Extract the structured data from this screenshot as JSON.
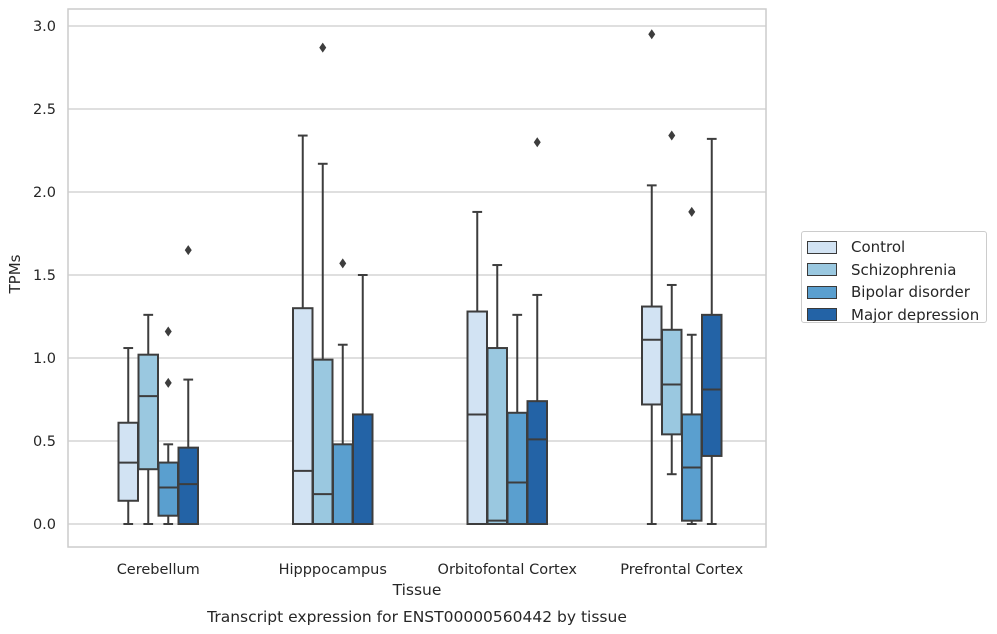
{
  "chart_data": {
    "type": "box",
    "title": "Transcript expression for ENST00000560442 by tissue",
    "xlabel": "Tissue",
    "ylabel": "TPMs",
    "ylim": [
      -0.14,
      3.1
    ],
    "yticks": [
      0.0,
      0.5,
      1.0,
      1.5,
      2.0,
      2.5,
      3.0
    ],
    "ytick_labels": [
      "0.0",
      "0.5",
      "1.0",
      "1.5",
      "2.0",
      "2.5",
      "3.0"
    ],
    "grid": true,
    "legend_position": "right",
    "categories": [
      "Cerebellum",
      "Hipppocampus",
      "Orbitofontal Cortex",
      "Prefrontal Cortex"
    ],
    "series": [
      {
        "name": "Control",
        "color": "#d2e3f3",
        "boxes": [
          {
            "whislo": 0.0,
            "q1": 0.14,
            "med": 0.37,
            "q3": 0.61,
            "whishi": 1.06,
            "fliers": []
          },
          {
            "whislo": 0.0,
            "q1": 0.0,
            "med": 0.32,
            "q3": 1.3,
            "whishi": 2.34,
            "fliers": []
          },
          {
            "whislo": 0.0,
            "q1": 0.0,
            "med": 0.66,
            "q3": 1.28,
            "whishi": 1.88,
            "fliers": []
          },
          {
            "whislo": 0.0,
            "q1": 0.72,
            "med": 1.11,
            "q3": 1.31,
            "whishi": 2.04,
            "fliers": [
              2.95
            ]
          }
        ]
      },
      {
        "name": "Schizophrenia",
        "color": "#9ac8e0",
        "boxes": [
          {
            "whislo": 0.0,
            "q1": 0.33,
            "med": 0.77,
            "q3": 1.02,
            "whishi": 1.26,
            "fliers": []
          },
          {
            "whislo": 0.0,
            "q1": 0.0,
            "med": 0.18,
            "q3": 0.99,
            "whishi": 2.17,
            "fliers": [
              2.87
            ]
          },
          {
            "whislo": 0.0,
            "q1": 0.0,
            "med": 0.02,
            "q3": 1.06,
            "whishi": 1.56,
            "fliers": []
          },
          {
            "whislo": 0.3,
            "q1": 0.54,
            "med": 0.84,
            "q3": 1.17,
            "whishi": 1.44,
            "fliers": [
              2.34
            ]
          }
        ]
      },
      {
        "name": "Bipolar disorder",
        "color": "#5a9fcf",
        "boxes": [
          {
            "whislo": 0.0,
            "q1": 0.05,
            "med": 0.22,
            "q3": 0.37,
            "whishi": 0.48,
            "fliers": [
              0.85,
              1.16
            ]
          },
          {
            "whislo": 0.0,
            "q1": 0.0,
            "med": 0.0,
            "q3": 0.48,
            "whishi": 1.08,
            "fliers": [
              1.57
            ]
          },
          {
            "whislo": 0.0,
            "q1": 0.0,
            "med": 0.25,
            "q3": 0.67,
            "whishi": 1.26,
            "fliers": []
          },
          {
            "whislo": 0.0,
            "q1": 0.02,
            "med": 0.34,
            "q3": 0.66,
            "whishi": 1.14,
            "fliers": [
              1.88
            ]
          }
        ]
      },
      {
        "name": "Major depression",
        "color": "#2363a6",
        "boxes": [
          {
            "whislo": 0.0,
            "q1": 0.0,
            "med": 0.24,
            "q3": 0.46,
            "whishi": 0.87,
            "fliers": [
              1.65
            ]
          },
          {
            "whislo": 0.0,
            "q1": 0.0,
            "med": 0.0,
            "q3": 0.66,
            "whishi": 1.5,
            "fliers": []
          },
          {
            "whislo": 0.0,
            "q1": 0.0,
            "med": 0.51,
            "q3": 0.74,
            "whishi": 1.38,
            "fliers": [
              2.3
            ]
          },
          {
            "whislo": 0.0,
            "q1": 0.41,
            "med": 0.81,
            "q3": 1.26,
            "whishi": 2.32,
            "fliers": []
          }
        ]
      }
    ]
  }
}
